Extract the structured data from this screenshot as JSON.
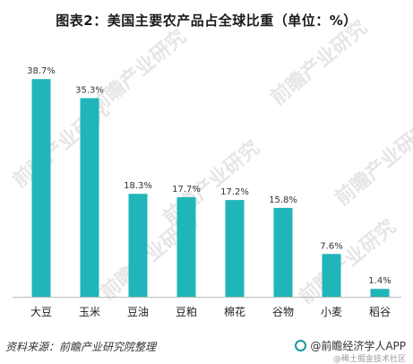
{
  "title": "图表2：美国主要农产品占全球比重（单位：%）",
  "source_text": "资料来源：前瞻产业研究院整理",
  "brand_text": "@前瞻经济学人APP",
  "community_text": "@稀土掘金技术社区",
  "watermark_text": "前瞻产业研究",
  "colors": {
    "bar": "#1fb5b9",
    "axis": "#bbbbbb"
  },
  "chart_data": {
    "type": "bar",
    "title": "图表2：美国主要农产品占全球比重（单位：%）",
    "categories": [
      "大豆",
      "玉米",
      "豆油",
      "豆粕",
      "棉花",
      "谷物",
      "小麦",
      "稻谷"
    ],
    "values": [
      38.7,
      35.3,
      18.3,
      17.7,
      17.2,
      15.8,
      7.6,
      1.4
    ],
    "value_labels": [
      "38.7%",
      "35.3%",
      "18.3%",
      "17.7%",
      "17.2%",
      "15.8%",
      "7.6%",
      "1.4%"
    ],
    "ylim": [
      0,
      40
    ],
    "grid": false,
    "legend": "none"
  }
}
